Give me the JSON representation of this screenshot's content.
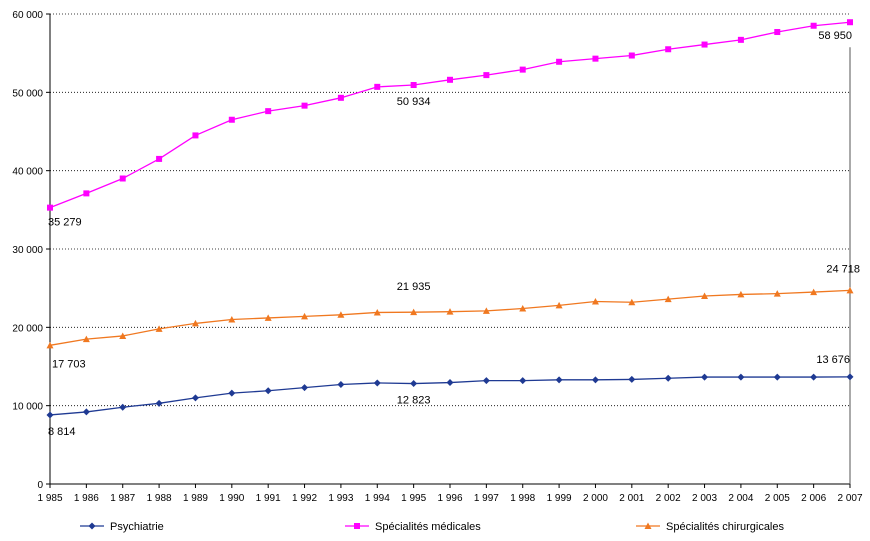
{
  "chart_data": {
    "type": "line",
    "title": "",
    "xlabel": "",
    "ylabel": "",
    "ylim": [
      0,
      60000
    ],
    "y_ticks": [
      "0",
      "10 000",
      "20 000",
      "30 000",
      "40 000",
      "50 000",
      "60 000"
    ],
    "y_tick_values": [
      0,
      10000,
      20000,
      30000,
      40000,
      50000,
      60000
    ],
    "x_tick_labels": [
      "1 985",
      "1 986",
      "1 987",
      "1 988",
      "1 989",
      "1 990",
      "1 991",
      "1 992",
      "1 993",
      "1 994",
      "1 995",
      "1 996",
      "1 997",
      "1 998",
      "1 999",
      "2 000",
      "2 001",
      "2 002",
      "2 003",
      "2 004",
      "2 005",
      "2 006",
      "2 007"
    ],
    "x": [
      1985,
      1986,
      1987,
      1988,
      1989,
      1990,
      1991,
      1992,
      1993,
      1994,
      1995,
      1996,
      1997,
      1998,
      1999,
      2000,
      2001,
      2002,
      2003,
      2004,
      2005,
      2006,
      2007
    ],
    "grid": "horizontal dotted",
    "legend_position": "bottom",
    "series": [
      {
        "name": "Psychiatrie",
        "color": "#1f3a93",
        "marker": "diamond",
        "values": [
          8814,
          9200,
          9800,
          10300,
          11000,
          11600,
          11900,
          12300,
          12700,
          12900,
          12823,
          12950,
          13200,
          13200,
          13300,
          13300,
          13350,
          13500,
          13650,
          13650,
          13650,
          13650,
          13676
        ],
        "labels": [
          {
            "index": 0,
            "text": "8 814"
          },
          {
            "index": 10,
            "text": "12 823"
          },
          {
            "index": 22,
            "text": "13 676"
          }
        ]
      },
      {
        "name": "Spécialités médicales",
        "color": "#ff00ff",
        "marker": "square",
        "values": [
          35279,
          37100,
          39000,
          41500,
          44500,
          46500,
          47600,
          48300,
          49300,
          50700,
          50934,
          51600,
          52200,
          52900,
          53900,
          54300,
          54700,
          55500,
          56100,
          56700,
          57700,
          58500,
          58950
        ],
        "labels": [
          {
            "index": 0,
            "text": "35 279"
          },
          {
            "index": 10,
            "text": "50 934"
          },
          {
            "index": 22,
            "text": "58 950"
          }
        ]
      },
      {
        "name": "Spécialités chirurgicales",
        "color": "#f07820",
        "marker": "triangle",
        "values": [
          17703,
          18500,
          18900,
          19800,
          20500,
          21000,
          21200,
          21400,
          21600,
          21900,
          21935,
          22000,
          22100,
          22400,
          22800,
          23300,
          23200,
          23600,
          24000,
          24200,
          24300,
          24500,
          24718
        ],
        "labels": [
          {
            "index": 0,
            "text": "17 703"
          },
          {
            "index": 10,
            "text": "21 935"
          },
          {
            "index": 22,
            "text": "24 718"
          }
        ]
      }
    ]
  }
}
